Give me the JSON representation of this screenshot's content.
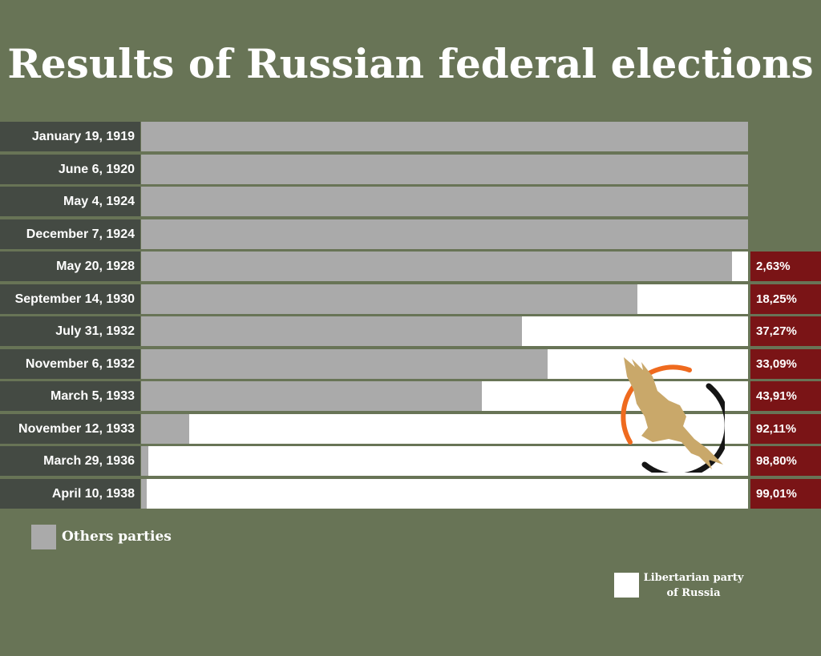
{
  "title": "Results of Russian federal elections",
  "colors": {
    "background": "#687456",
    "others": "#aaaaaa",
    "libertarian": "#ffffff",
    "label_bg": "#444a43",
    "value_bg": "#7a1416"
  },
  "chart_data": {
    "type": "bar",
    "orientation": "horizontal",
    "stacked": true,
    "xlim": [
      0,
      100
    ],
    "categories": [
      "January 19, 1919",
      "June 6, 1920",
      "May 4, 1924",
      "December 7, 1924",
      "May 20, 1928",
      "September 14, 1930",
      "July 31, 1932",
      "November 6, 1932",
      "March 5, 1933",
      "November 12, 1933",
      "March 29, 1936",
      "April 10, 1938"
    ],
    "series": [
      {
        "name": "Others parties",
        "values": [
          100,
          100,
          100,
          100,
          97.37,
          81.75,
          62.73,
          66.91,
          56.09,
          7.89,
          1.2,
          0.99
        ]
      },
      {
        "name": "Libertarian party of Russia",
        "values": [
          0,
          0,
          0,
          0,
          2.63,
          18.25,
          37.27,
          33.09,
          43.91,
          92.11,
          98.8,
          99.01
        ]
      }
    ],
    "value_labels": [
      "",
      "",
      "",
      "",
      "2,63%",
      "18,25%",
      "37,27%",
      "33,09%",
      "43,91%",
      "92,11%",
      "98,80%",
      "99,01%"
    ],
    "legend": [
      {
        "label": "Others parties",
        "placement": "bottom-left"
      },
      {
        "label_line1": "Libertarian party",
        "label_line2": "of Russia",
        "placement": "bottom-right"
      }
    ],
    "logo": "eagle-emblem-icon"
  }
}
